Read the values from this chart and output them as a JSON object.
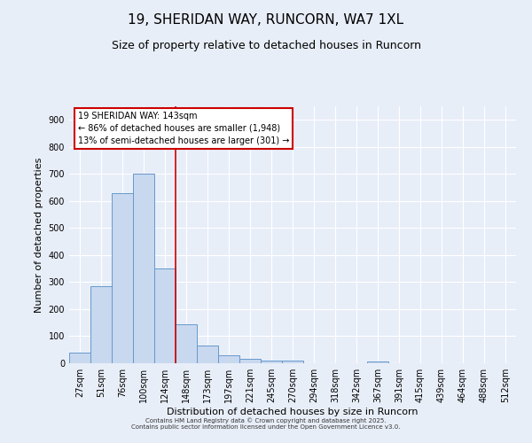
{
  "title": "19, SHERIDAN WAY, RUNCORN, WA7 1XL",
  "subtitle": "Size of property relative to detached houses in Runcorn",
  "xlabel": "Distribution of detached houses by size in Runcorn",
  "ylabel": "Number of detached properties",
  "bar_labels": [
    "27sqm",
    "51sqm",
    "76sqm",
    "100sqm",
    "124sqm",
    "148sqm",
    "173sqm",
    "197sqm",
    "221sqm",
    "245sqm",
    "270sqm",
    "294sqm",
    "318sqm",
    "342sqm",
    "367sqm",
    "391sqm",
    "415sqm",
    "439sqm",
    "464sqm",
    "488sqm",
    "512sqm"
  ],
  "bar_values": [
    40,
    285,
    630,
    700,
    350,
    145,
    65,
    30,
    15,
    10,
    10,
    0,
    0,
    0,
    8,
    0,
    0,
    0,
    0,
    0,
    0
  ],
  "bar_color": "#c8d8ef",
  "bar_edgecolor": "#6699cc",
  "vline_x": 4.5,
  "vline_color": "#cc0000",
  "ylim": [
    0,
    950
  ],
  "yticks": [
    0,
    100,
    200,
    300,
    400,
    500,
    600,
    700,
    800,
    900
  ],
  "annotation_title": "19 SHERIDAN WAY: 143sqm",
  "annotation_line1": "← 86% of detached houses are smaller (1,948)",
  "annotation_line2": "13% of semi-detached houses are larger (301) →",
  "annotation_box_color": "#ffffff",
  "annotation_box_edgecolor": "#cc0000",
  "background_color": "#e8eef8",
  "grid_color": "#ffffff",
  "title_fontsize": 11,
  "subtitle_fontsize": 9,
  "label_fontsize": 8,
  "tick_fontsize": 7,
  "ann_fontsize": 7,
  "footer1": "Contains HM Land Registry data © Crown copyright and database right 2025.",
  "footer2": "Contains public sector information licensed under the Open Government Licence v3.0."
}
